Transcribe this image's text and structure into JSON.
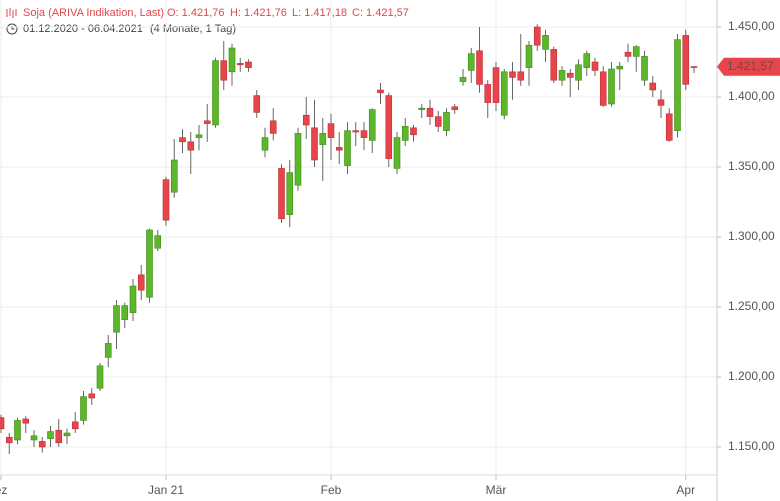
{
  "chart_data": {
    "type": "candlestick",
    "title": "Soja (ARIVA Indikation, Last)",
    "ohlc_labels": [
      "O: 1.421,76",
      "H: 1.421,76",
      "L: 1.417,18",
      "C: 1.421,57"
    ],
    "date_range": "01.12.2020 - 06.04.2021",
    "period": "(4 Monate, 1 Tag)",
    "last_price": {
      "value": 1421.57,
      "label": "1.421,57"
    },
    "up_color": "#5cb82a",
    "down_color": "#e8454b",
    "grid": true,
    "categories": [
      null,
      null,
      null,
      null,
      null,
      null,
      null,
      null,
      null,
      null,
      null,
      null,
      null,
      null,
      null,
      null,
      null,
      null,
      null,
      null,
      null,
      null,
      null,
      null,
      null,
      null,
      null,
      null,
      null,
      null,
      null,
      null,
      null,
      null,
      null,
      null,
      null,
      null,
      null,
      null,
      null,
      null,
      null,
      null,
      null,
      null,
      null,
      null,
      null,
      null,
      null,
      null,
      null,
      null,
      null,
      null,
      null,
      null,
      null,
      null,
      null,
      null,
      null,
      null,
      null,
      null,
      null,
      null,
      null,
      null,
      null,
      null,
      null,
      null,
      null,
      null,
      null,
      null,
      null,
      null,
      null,
      null,
      null,
      null,
      null
    ],
    "open": [
      1171,
      1157,
      1155,
      1170,
      1155,
      1154,
      1156,
      1162,
      1158,
      1168,
      1169,
      1188,
      1192,
      1214,
      1232,
      1241,
      1246,
      1273,
      1257,
      1292,
      1341,
      1332,
      1371,
      1368,
      1371,
      1383,
      1380,
      1426,
      1418,
      1424,
      1425,
      1401,
      1362,
      1383,
      1349,
      1316,
      1337,
      1387,
      1378,
      1366,
      1381,
      1364,
      1351,
      1376,
      1376,
      1369,
      1405,
      1401,
      1349,
      1369,
      1378,
      1391,
      1392,
      1386,
      1376,
      1393,
      1411,
      1419,
      1433,
      1409,
      1421,
      1387,
      1418,
      1418,
      1421,
      1450,
      1434,
      1434,
      1412,
      1417,
      1412,
      1421,
      1425,
      1418,
      1395,
      1420,
      1432,
      1429,
      1412,
      1410,
      1398,
      1388,
      1376,
      1444,
      1421.76
    ],
    "high": [
      1173,
      1160,
      1171,
      1172,
      1162,
      1157,
      1165,
      1170,
      1163,
      1175,
      1190,
      1192,
      1210,
      1230,
      1255,
      1253,
      1270,
      1280,
      1306,
      1305,
      1343,
      1370,
      1377,
      1375,
      1380,
      1395,
      1428,
      1440,
      1438,
      1428,
      1427,
      1405,
      1378,
      1392,
      1352,
      1355,
      1378,
      1400,
      1398,
      1385,
      1388,
      1375,
      1382,
      1382,
      1382,
      1392,
      1410,
      1403,
      1375,
      1385,
      1380,
      1395,
      1398,
      1390,
      1392,
      1395,
      1420,
      1435,
      1450,
      1412,
      1425,
      1420,
      1425,
      1445,
      1440,
      1452,
      1448,
      1436,
      1422,
      1420,
      1427,
      1433,
      1428,
      1422,
      1425,
      1425,
      1438,
      1437,
      1433,
      1415,
      1405,
      1392,
      1445,
      1448,
      1421.76
    ],
    "low": [
      1160,
      1145,
      1152,
      1160,
      1150,
      1146,
      1150,
      1150,
      1152,
      1160,
      1166,
      1180,
      1190,
      1207,
      1220,
      1235,
      1240,
      1255,
      1253,
      1290,
      1308,
      1328,
      1360,
      1345,
      1362,
      1368,
      1378,
      1405,
      1408,
      1418,
      1418,
      1385,
      1357,
      1369,
      1310,
      1307,
      1333,
      1370,
      1350,
      1340,
      1355,
      1352,
      1345,
      1365,
      1362,
      1360,
      1395,
      1350,
      1345,
      1365,
      1368,
      1385,
      1380,
      1375,
      1372,
      1388,
      1408,
      1410,
      1403,
      1385,
      1390,
      1384,
      1398,
      1408,
      1408,
      1433,
      1425,
      1410,
      1408,
      1400,
      1405,
      1415,
      1415,
      1393,
      1393,
      1405,
      1425,
      1418,
      1408,
      1400,
      1385,
      1368,
      1371,
      1405,
      1417.18
    ],
    "close": [
      1163,
      1153,
      1169,
      1167,
      1158,
      1150,
      1161,
      1153,
      1160,
      1163,
      1186,
      1185,
      1208,
      1224,
      1251,
      1251,
      1265,
      1262,
      1305,
      1301,
      1312,
      1355,
      1368,
      1362,
      1373,
      1381,
      1426,
      1412,
      1435,
      1423,
      1421,
      1389,
      1371,
      1374,
      1313,
      1346,
      1374,
      1380,
      1355,
      1374,
      1371,
      1362,
      1376,
      1375,
      1371,
      1391,
      1403,
      1356,
      1371,
      1379,
      1373,
      1392,
      1386,
      1379,
      1389,
      1391,
      1414,
      1431,
      1409,
      1396,
      1396,
      1418,
      1414,
      1412,
      1437,
      1437,
      1444,
      1412,
      1419,
      1414,
      1423,
      1431,
      1419,
      1394,
      1420,
      1422,
      1429,
      1436,
      1429,
      1405,
      1394,
      1369,
      1441,
      1409,
      1421.57
    ],
    "xticks": [
      {
        "value": 0,
        "label": "ez"
      },
      {
        "value": 20,
        "label": "Jan 21"
      },
      {
        "value": 40,
        "label": "Feb"
      },
      {
        "value": 60,
        "label": "Mär"
      },
      {
        "value": 83,
        "label": "Apr"
      }
    ],
    "ylim": [
      1130,
      1469.29
    ],
    "yticks": [
      {
        "value": 1150,
        "label": "1.150,00"
      },
      {
        "value": 1200,
        "label": "1.200,00"
      },
      {
        "value": 1250,
        "label": "1.250,00"
      },
      {
        "value": 1300,
        "label": "1.300,00"
      },
      {
        "value": 1350,
        "label": "1.350,00"
      },
      {
        "value": 1400,
        "label": "1.400,00"
      },
      {
        "value": 1450,
        "label": "1.450,00"
      }
    ]
  }
}
